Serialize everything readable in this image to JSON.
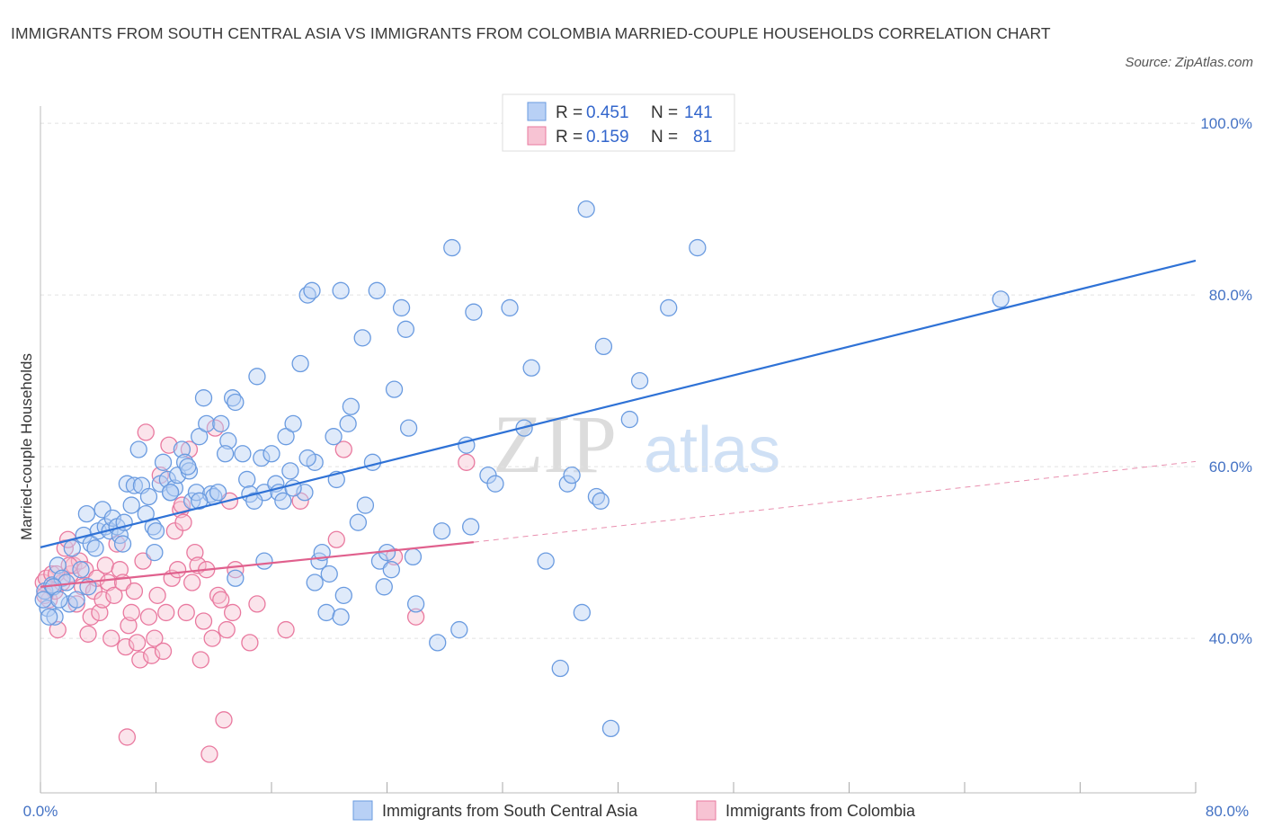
{
  "title": "IMMIGRANTS FROM SOUTH CENTRAL ASIA VS IMMIGRANTS FROM COLOMBIA MARRIED-COUPLE HOUSEHOLDS CORRELATION CHART",
  "source": "Source: ZipAtlas.com",
  "watermark": {
    "zip": "ZIP",
    "atlas": "atlas"
  },
  "colors": {
    "blue": "#6a9be0",
    "blue_fill": "#b8d0f5",
    "blue_line": "#2f72d6",
    "pink": "#e9799f",
    "pink_fill": "#f7c3d3",
    "pink_line": "#e0608d",
    "tick_label": "#4472c4"
  },
  "legend": {
    "series1": {
      "r_label": "R =",
      "r_value": "0.451",
      "n_label": "N =",
      "n_value": "141"
    },
    "series2": {
      "r_label": "R =",
      "r_value": "0.159",
      "n_label": "N =",
      "n_value": "81"
    }
  },
  "chart_data": {
    "type": "scatter",
    "title": "IMMIGRANTS FROM SOUTH CENTRAL ASIA VS IMMIGRANTS FROM COLOMBIA MARRIED-COUPLE HOUSEHOLDS CORRELATION CHART",
    "xlabel": "",
    "ylabel": "Married-couple Households",
    "xlim": [
      0,
      80
    ],
    "ylim": [
      22,
      102
    ],
    "x_tick_labels": [
      "0.0%",
      "80.0%"
    ],
    "y_ticks": [
      40,
      60,
      80,
      100
    ],
    "y_tick_labels": [
      "40.0%",
      "60.0%",
      "80.0%",
      "100.0%"
    ],
    "series": [
      {
        "name": "Immigrants from South Central Asia",
        "color": "blue",
        "trend": {
          "x": [
            0,
            80
          ],
          "y": [
            50.6,
            84.0
          ],
          "dashed_x": null
        },
        "points": [
          [
            0.3,
            45.5
          ],
          [
            0.5,
            43.5
          ],
          [
            0.8,
            46.2
          ],
          [
            1.0,
            42.5
          ],
          [
            1.2,
            48.5
          ],
          [
            1.5,
            47.0
          ],
          [
            1.8,
            46.5
          ],
          [
            2.0,
            44.0
          ],
          [
            2.2,
            50.5
          ],
          [
            2.5,
            44.5
          ],
          [
            2.8,
            48.0
          ],
          [
            3.0,
            52.0
          ],
          [
            3.2,
            54.5
          ],
          [
            3.5,
            51.0
          ],
          [
            3.8,
            50.5
          ],
          [
            4.0,
            52.5
          ],
          [
            4.3,
            55.0
          ],
          [
            4.5,
            53.0
          ],
          [
            4.8,
            52.5
          ],
          [
            5.0,
            54.0
          ],
          [
            5.3,
            53.0
          ],
          [
            5.5,
            52.0
          ],
          [
            5.8,
            53.5
          ],
          [
            6.0,
            58.0
          ],
          [
            6.3,
            55.5
          ],
          [
            6.5,
            57.8
          ],
          [
            6.8,
            62.0
          ],
          [
            7.0,
            57.8
          ],
          [
            7.3,
            54.5
          ],
          [
            7.5,
            56.5
          ],
          [
            7.8,
            53.0
          ],
          [
            8.0,
            52.5
          ],
          [
            8.3,
            58.0
          ],
          [
            8.5,
            60.5
          ],
          [
            8.8,
            58.5
          ],
          [
            9.0,
            57.0
          ],
          [
            9.3,
            57.5
          ],
          [
            9.5,
            59.0
          ],
          [
            9.8,
            62.0
          ],
          [
            10.0,
            60.5
          ],
          [
            10.3,
            59.5
          ],
          [
            10.5,
            56.0
          ],
          [
            10.8,
            57.0
          ],
          [
            11.0,
            63.5
          ],
          [
            11.3,
            68.0
          ],
          [
            11.5,
            65.0
          ],
          [
            11.8,
            56.8
          ],
          [
            12.0,
            56.5
          ],
          [
            12.3,
            57.0
          ],
          [
            12.5,
            65.0
          ],
          [
            13.0,
            63.0
          ],
          [
            13.3,
            68.0
          ],
          [
            13.5,
            67.5
          ],
          [
            14.0,
            61.5
          ],
          [
            14.3,
            58.5
          ],
          [
            14.5,
            56.8
          ],
          [
            15.0,
            70.5
          ],
          [
            15.3,
            61.0
          ],
          [
            15.5,
            57.0
          ],
          [
            16.0,
            61.5
          ],
          [
            16.3,
            58.0
          ],
          [
            16.5,
            57.0
          ],
          [
            17.0,
            63.5
          ],
          [
            17.3,
            59.5
          ],
          [
            17.5,
            65.0
          ],
          [
            18.0,
            72.0
          ],
          [
            18.3,
            57.0
          ],
          [
            18.5,
            80.0
          ],
          [
            18.8,
            80.5
          ],
          [
            19.0,
            60.5
          ],
          [
            19.3,
            49.0
          ],
          [
            19.5,
            50.0
          ],
          [
            19.8,
            43.0
          ],
          [
            20.0,
            47.5
          ],
          [
            20.3,
            63.5
          ],
          [
            20.5,
            58.5
          ],
          [
            20.8,
            80.5
          ],
          [
            21.0,
            45.0
          ],
          [
            21.3,
            65.0
          ],
          [
            21.5,
            67.0
          ],
          [
            22.0,
            53.5
          ],
          [
            22.3,
            75.0
          ],
          [
            22.5,
            55.5
          ],
          [
            23.0,
            60.5
          ],
          [
            23.3,
            80.5
          ],
          [
            23.5,
            49.0
          ],
          [
            24.0,
            50.0
          ],
          [
            24.3,
            48.0
          ],
          [
            24.5,
            69.0
          ],
          [
            25.0,
            78.5
          ],
          [
            25.3,
            76.0
          ],
          [
            25.5,
            64.5
          ],
          [
            25.8,
            49.5
          ],
          [
            27.5,
            39.5
          ],
          [
            27.8,
            52.5
          ],
          [
            28.5,
            85.5
          ],
          [
            29.0,
            41.0
          ],
          [
            29.5,
            62.5
          ],
          [
            29.8,
            53.0
          ],
          [
            30.0,
            78.0
          ],
          [
            31.0,
            59.0
          ],
          [
            31.5,
            58.0
          ],
          [
            32.5,
            78.5
          ],
          [
            33.5,
            64.5
          ],
          [
            34.0,
            71.5
          ],
          [
            35.0,
            49.0
          ],
          [
            36.0,
            36.5
          ],
          [
            36.5,
            58.0
          ],
          [
            36.8,
            59.0
          ],
          [
            37.5,
            43.0
          ],
          [
            37.8,
            90.0
          ],
          [
            38.5,
            56.5
          ],
          [
            38.8,
            56.0
          ],
          [
            39.0,
            74.0
          ],
          [
            39.5,
            29.5
          ],
          [
            40.8,
            65.5
          ],
          [
            41.5,
            70.0
          ],
          [
            43.5,
            78.5
          ],
          [
            45.5,
            85.5
          ],
          [
            66.5,
            79.5
          ],
          [
            0.2,
            44.5
          ],
          [
            0.6,
            42.5
          ],
          [
            0.9,
            46.0
          ],
          [
            1.3,
            44.5
          ],
          [
            3.3,
            46.0
          ],
          [
            5.7,
            51.0
          ],
          [
            7.9,
            50.0
          ],
          [
            10.2,
            60.0
          ],
          [
            11.0,
            56.0
          ],
          [
            15.5,
            49.0
          ],
          [
            16.8,
            56.0
          ],
          [
            17.5,
            57.5
          ],
          [
            18.5,
            61.0
          ],
          [
            19.0,
            46.5
          ],
          [
            23.8,
            46.0
          ],
          [
            9.0,
            57.0
          ],
          [
            12.8,
            61.5
          ],
          [
            14.8,
            56.0
          ],
          [
            20.8,
            42.5
          ],
          [
            13.5,
            47.0
          ],
          [
            26.0,
            44.0
          ]
        ]
      },
      {
        "name": "Immigrants from Colombia",
        "color": "pink",
        "trend": {
          "x": [
            0,
            30
          ],
          "y": [
            46.0,
            51.2
          ],
          "dashed_x": [
            30,
            80
          ],
          "dashed_y": [
            51.2,
            60.6
          ]
        },
        "points": [
          [
            0.2,
            46.5
          ],
          [
            0.4,
            47.0
          ],
          [
            0.6,
            44.5
          ],
          [
            0.8,
            47.5
          ],
          [
            1.0,
            45.5
          ],
          [
            1.2,
            41.0
          ],
          [
            1.5,
            46.5
          ],
          [
            1.7,
            50.5
          ],
          [
            1.9,
            51.5
          ],
          [
            2.1,
            47.5
          ],
          [
            2.3,
            48.5
          ],
          [
            2.5,
            44.0
          ],
          [
            2.7,
            49.0
          ],
          [
            2.9,
            46.0
          ],
          [
            3.1,
            48.0
          ],
          [
            3.3,
            40.5
          ],
          [
            3.5,
            42.5
          ],
          [
            3.7,
            45.5
          ],
          [
            3.9,
            47.0
          ],
          [
            4.1,
            43.0
          ],
          [
            4.3,
            44.5
          ],
          [
            4.5,
            48.5
          ],
          [
            4.7,
            46.5
          ],
          [
            4.9,
            40.0
          ],
          [
            5.1,
            45.0
          ],
          [
            5.3,
            51.0
          ],
          [
            5.5,
            48.0
          ],
          [
            5.7,
            46.5
          ],
          [
            5.9,
            39.0
          ],
          [
            6.1,
            41.5
          ],
          [
            6.3,
            43.0
          ],
          [
            6.5,
            45.5
          ],
          [
            6.7,
            39.5
          ],
          [
            6.9,
            37.5
          ],
          [
            7.1,
            49.0
          ],
          [
            7.3,
            64.0
          ],
          [
            7.5,
            42.5
          ],
          [
            7.7,
            38.0
          ],
          [
            7.9,
            40.0
          ],
          [
            8.1,
            45.0
          ],
          [
            8.3,
            59.0
          ],
          [
            8.5,
            38.5
          ],
          [
            8.7,
            43.0
          ],
          [
            8.9,
            62.5
          ],
          [
            9.1,
            47.0
          ],
          [
            9.3,
            52.5
          ],
          [
            9.5,
            48.0
          ],
          [
            9.7,
            55.0
          ],
          [
            9.9,
            53.5
          ],
          [
            10.1,
            43.0
          ],
          [
            10.3,
            62.0
          ],
          [
            10.5,
            46.5
          ],
          [
            10.7,
            50.0
          ],
          [
            10.9,
            48.5
          ],
          [
            11.1,
            37.5
          ],
          [
            11.3,
            42.0
          ],
          [
            11.5,
            48.0
          ],
          [
            11.7,
            26.5
          ],
          [
            11.9,
            40.0
          ],
          [
            12.1,
            64.5
          ],
          [
            12.3,
            45.0
          ],
          [
            12.5,
            44.5
          ],
          [
            12.7,
            30.5
          ],
          [
            12.9,
            41.0
          ],
          [
            13.1,
            56.0
          ],
          [
            13.3,
            43.0
          ],
          [
            13.5,
            48.0
          ],
          [
            14.5,
            39.5
          ],
          [
            15.0,
            44.0
          ],
          [
            17.0,
            41.0
          ],
          [
            18.0,
            56.0
          ],
          [
            20.5,
            51.5
          ],
          [
            21.0,
            62.0
          ],
          [
            24.5,
            49.5
          ],
          [
            26.0,
            42.5
          ],
          [
            29.5,
            60.5
          ],
          [
            0.3,
            45.0
          ],
          [
            1.1,
            47.5
          ],
          [
            2.0,
            48.5
          ],
          [
            6.0,
            28.5
          ],
          [
            9.8,
            55.5
          ]
        ]
      }
    ]
  },
  "bottom_legend": {
    "series1_label": "Immigrants from South Central Asia",
    "series2_label": "Immigrants from Colombia"
  }
}
